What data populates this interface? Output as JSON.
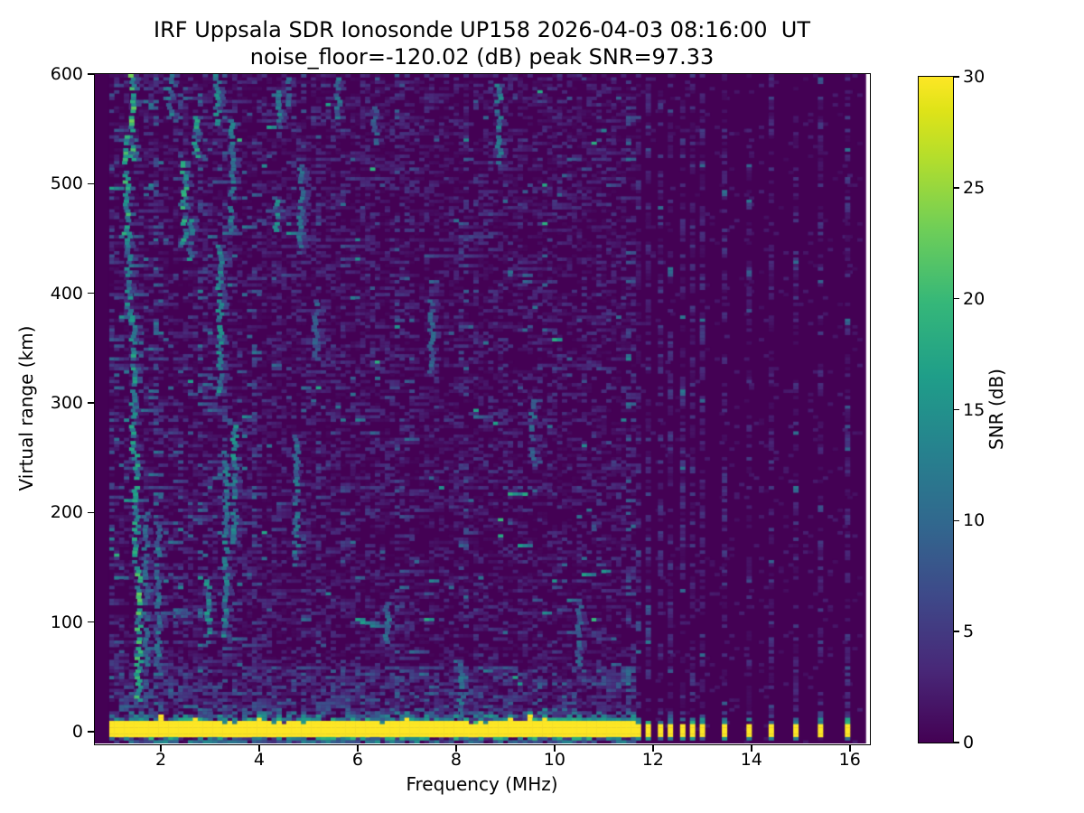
{
  "figure": {
    "background": "#ffffff",
    "text_color": "#000000"
  },
  "chart_data": {
    "type": "heatmap",
    "title": "IRF Uppsala SDR Ionosonde UP158 2026-04-03 08:16:00  UT",
    "subtitle": "noise_floor=-120.02 (dB) peak SNR=97.33",
    "station": "UP158",
    "timestamp_ut": "2026-04-03 08:16:00",
    "noise_floor_db": -120.02,
    "peak_snr_db": 97.33,
    "xlabel": "Frequency (MHz)",
    "ylabel": "Virtual range (km)",
    "xlim": [
      0.66,
      16.39
    ],
    "ylim": [
      -10.7,
      600
    ],
    "x_ticks": [
      2,
      4,
      6,
      8,
      10,
      12,
      14,
      16
    ],
    "y_ticks": [
      0,
      100,
      200,
      300,
      400,
      500,
      600
    ],
    "grid": false,
    "colorbar": {
      "label": "SNR (dB)",
      "ticks": [
        0,
        5,
        10,
        15,
        20,
        25,
        30
      ],
      "vmin": 0,
      "vmax": 30,
      "colormap": "viridis",
      "position": "right"
    },
    "sweep": {
      "continuous": {
        "f_start_mhz": 1.0,
        "f_end_mhz": 11.65,
        "step_mhz": 0.1
      },
      "discrete_marks_mhz": [
        11.7,
        11.9,
        12.15,
        12.35,
        12.6,
        12.8,
        13.0,
        13.45,
        13.95,
        14.4,
        14.9,
        15.4,
        15.95
      ],
      "data_f_end_mhz": 16.28
    },
    "ground_pulse_band": {
      "km_low": -4.6,
      "km_high": 8.2,
      "snr_db": 30
    },
    "echo_streaks": [
      [
        1.42,
        520,
        600,
        1.0
      ],
      [
        1.3,
        455,
        545,
        0.85
      ],
      [
        1.35,
        375,
        460,
        0.6
      ],
      [
        1.44,
        250,
        380,
        0.7
      ],
      [
        1.5,
        150,
        255,
        0.8
      ],
      [
        1.55,
        28,
        152,
        0.95
      ],
      [
        1.7,
        60,
        200,
        0.4
      ],
      [
        1.95,
        55,
        190,
        0.5
      ],
      [
        2.2,
        560,
        600,
        0.5
      ],
      [
        2.48,
        445,
        520,
        0.8
      ],
      [
        2.72,
        525,
        565,
        0.75
      ],
      [
        2.6,
        432,
        470,
        0.6
      ],
      [
        2.95,
        82,
        140,
        0.7
      ],
      [
        3.15,
        555,
        600,
        0.6
      ],
      [
        3.2,
        308,
        445,
        0.6
      ],
      [
        3.32,
        88,
        258,
        0.55
      ],
      [
        3.5,
        172,
        278,
        0.6
      ],
      [
        3.45,
        458,
        560,
        0.5
      ],
      [
        4.35,
        455,
        492,
        0.6
      ],
      [
        4.42,
        550,
        588,
        0.6
      ],
      [
        4.62,
        572,
        600,
        0.5
      ],
      [
        4.75,
        152,
        272,
        0.5
      ],
      [
        4.85,
        438,
        520,
        0.45
      ],
      [
        5.15,
        338,
        395,
        0.35
      ],
      [
        5.6,
        560,
        598,
        0.45
      ],
      [
        6.35,
        538,
        575,
        0.35
      ],
      [
        6.6,
        82,
        118,
        0.5
      ],
      [
        7.5,
        328,
        395,
        0.35
      ],
      [
        8.1,
        12,
        68,
        0.45
      ],
      [
        8.87,
        518,
        590,
        0.55
      ],
      [
        9.55,
        242,
        302,
        0.4
      ],
      [
        10.5,
        62,
        115,
        0.35
      ]
    ],
    "echo_dashes": [
      [
        2.05,
        2.62,
        108,
        0.6
      ],
      [
        4.18,
        4.6,
        475,
        0.5
      ],
      [
        8.3,
        8.72,
        452,
        0.4
      ]
    ],
    "noise_model": {
      "seed": 20260403,
      "speckle_density": 0.5,
      "near_ground_density": 0.68,
      "sparse_right_density": 0.05,
      "ghost_column_density": 0.34
    },
    "colors": {
      "background_min": "#440154",
      "peak": "#fde725"
    }
  }
}
